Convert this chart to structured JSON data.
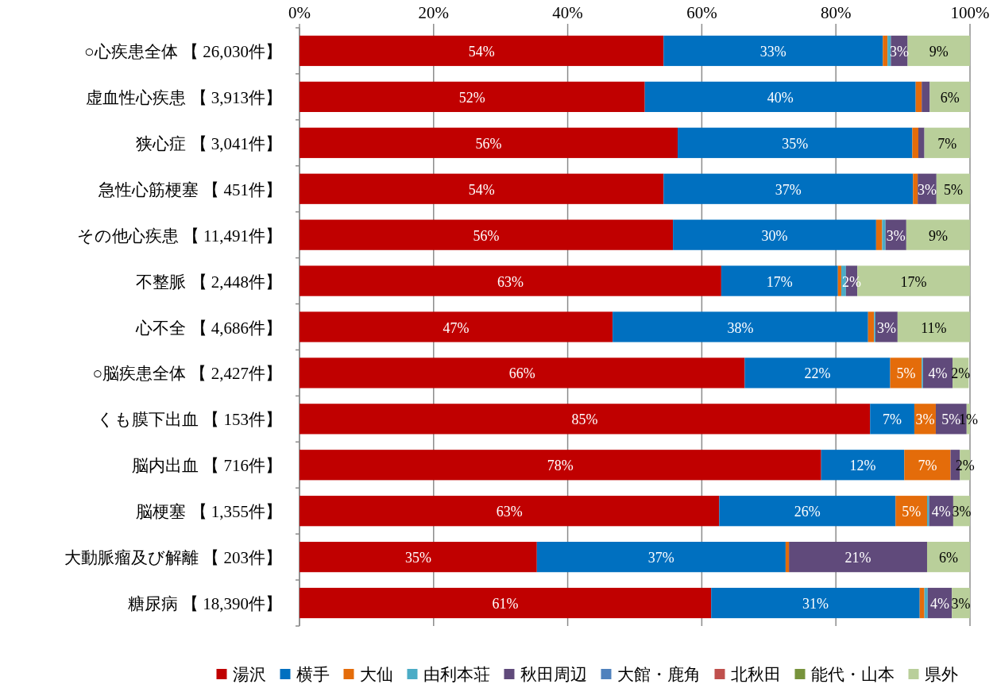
{
  "chart_data": {
    "type": "bar",
    "orientation": "horizontal",
    "stacked": true,
    "categories": [
      "○心疾患全体 【 26,030件】",
      "虚血性心疾患 【 3,913件】",
      "狭心症 【 3,041件】",
      "急性心筋梗塞 【 451件】",
      "その他心疾患 【 11,491件】",
      "不整脈 【 2,448件】",
      "心不全 【 4,686件】",
      "○脳疾患全体 【 2,427件】",
      "くも膜下出血 【 153件】",
      "脳内出血 【 716件】",
      "脳梗塞 【 1,355件】",
      "大動脈瘤及び解離 【 203件】",
      "糖尿病 【 18,390件】"
    ],
    "xlim": [
      0,
      100
    ],
    "xticks": [
      {
        "value": 0,
        "label": "0%"
      },
      {
        "value": 20,
        "label": "20%"
      },
      {
        "value": 40,
        "label": "40%"
      },
      {
        "value": 60,
        "label": "60%"
      },
      {
        "value": 80,
        "label": "80%"
      },
      {
        "value": 100,
        "label": "100%"
      }
    ],
    "grid": "x",
    "legend": "bottom",
    "series": [
      {
        "name": "湯沢",
        "color": "#c00000",
        "values": [
          54.3,
          51.5,
          56.4,
          54.3,
          55.7,
          62.9,
          46.7,
          66.4,
          85.1,
          77.8,
          62.6,
          35.4,
          61.4
        ],
        "value_labels": [
          "54%",
          "52%",
          "56%",
          "54%",
          "56%",
          "63%",
          "47%",
          "66%",
          "85%",
          "78%",
          "63%",
          "35%",
          "61%"
        ]
      },
      {
        "name": "横手",
        "color": "#0070c0",
        "values": [
          32.7,
          40.4,
          35.0,
          37.2,
          30.3,
          17.4,
          38.1,
          21.7,
          6.6,
          12.4,
          26.3,
          37.1,
          31.1
        ],
        "value_labels": [
          "33%",
          "40%",
          "35%",
          "37%",
          "30%",
          "17%",
          "38%",
          "22%",
          "7%",
          "12%",
          "26%",
          "37%",
          "31%"
        ]
      },
      {
        "name": "大仙",
        "color": "#e46c0a",
        "values": [
          0.7,
          0.9,
          0.9,
          0.7,
          0.9,
          0.5,
          0.9,
          4.7,
          3.2,
          6.9,
          4.7,
          0.5,
          0.7
        ],
        "value_labels": [
          null,
          null,
          null,
          null,
          null,
          null,
          null,
          "5%",
          "3%",
          "7%",
          "5%",
          null,
          null
        ]
      },
      {
        "name": "由利本荘",
        "color": "#4bacc6",
        "values": [
          0.5,
          0,
          0,
          0,
          0.5,
          0.7,
          0.2,
          0.2,
          0,
          0,
          0.3,
          0,
          0.5
        ],
        "value_labels": [
          null,
          null,
          null,
          null,
          null,
          null,
          null,
          null,
          null,
          null,
          null,
          null,
          null
        ]
      },
      {
        "name": "秋田周辺",
        "color": "#604a7b",
        "values": [
          2.5,
          1.2,
          0.9,
          2.8,
          3.1,
          1.7,
          3.3,
          4.4,
          4.6,
          1.4,
          3.6,
          20.6,
          3.6
        ],
        "value_labels": [
          "3%",
          null,
          null,
          "3%",
          "3%",
          "2%",
          "3%",
          "4%",
          "5%",
          null,
          "4%",
          "21%",
          "4%"
        ]
      },
      {
        "name": "大館・鹿角",
        "color": "#4f81bd",
        "values": [
          0,
          0,
          0,
          0,
          0,
          0,
          0,
          0,
          0,
          0,
          0,
          0,
          0
        ],
        "value_labels": [
          null,
          null,
          null,
          null,
          null,
          null,
          null,
          null,
          null,
          null,
          null,
          null,
          null
        ]
      },
      {
        "name": "北秋田",
        "color": "#c0504d",
        "values": [
          0,
          0,
          0,
          0,
          0,
          0,
          0,
          0,
          0,
          0,
          0,
          0,
          0
        ],
        "value_labels": [
          null,
          null,
          null,
          null,
          null,
          null,
          null,
          null,
          null,
          null,
          null,
          null,
          null
        ]
      },
      {
        "name": "能代・山本",
        "color": "#77933c",
        "values": [
          0,
          0,
          0,
          0,
          0,
          0,
          0,
          0,
          0,
          0,
          0,
          0,
          0
        ],
        "value_labels": [
          null,
          null,
          null,
          null,
          null,
          null,
          null,
          null,
          null,
          null,
          null,
          null,
          null
        ]
      },
      {
        "name": "県外",
        "color": "#b9cf9a",
        "values": [
          9.3,
          6.0,
          6.8,
          5.0,
          9.5,
          16.8,
          10.8,
          2.4,
          0.5,
          1.5,
          2.5,
          6.4,
          2.7
        ],
        "value_labels": [
          "9%",
          "6%",
          "7%",
          "5%",
          "9%",
          "17%",
          "11%",
          "2%",
          "1%",
          "2%",
          "3%",
          "6%",
          "3%"
        ]
      }
    ]
  }
}
